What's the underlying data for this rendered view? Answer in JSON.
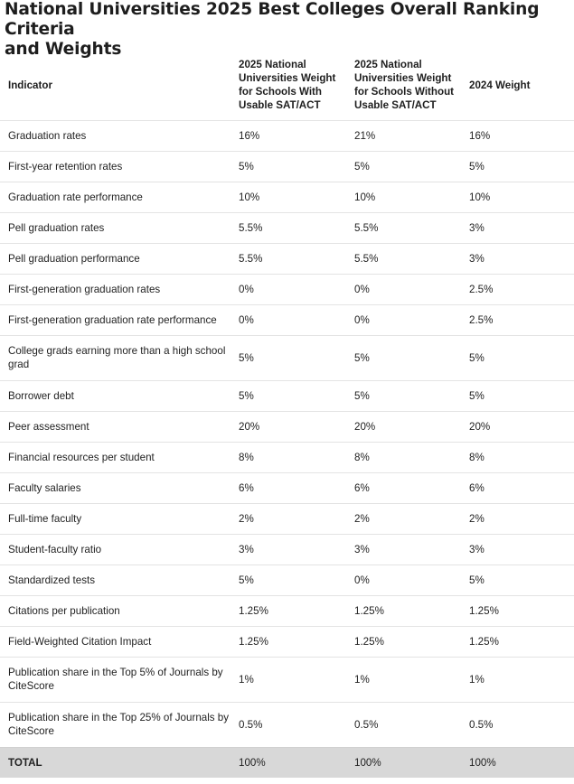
{
  "title_line1": "National Universities 2025 Best Colleges Overall Ranking Criteria",
  "title_line2": "and Weights",
  "headers": {
    "indicator": "Indicator",
    "with_sat": "2025 National Universities Weight for Schools With Usable SAT/ACT",
    "without_sat": "2025 National Universities Weight for Schools Without Usable SAT/ACT",
    "weight_2024": "2024 Weight"
  },
  "rows": [
    {
      "indicator": "Graduation rates",
      "with": "16%",
      "without": "21%",
      "w2024": "16%"
    },
    {
      "indicator": "First-year retention rates",
      "with": "5%",
      "without": "5%",
      "w2024": "5%"
    },
    {
      "indicator": "Graduation rate performance",
      "with": "10%",
      "without": "10%",
      "w2024": "10%"
    },
    {
      "indicator": "Pell graduation rates",
      "with": "5.5%",
      "without": "5.5%",
      "w2024": "3%"
    },
    {
      "indicator": "Pell graduation performance",
      "with": "5.5%",
      "without": "5.5%",
      "w2024": "3%"
    },
    {
      "indicator": "First-generation graduation rates",
      "with": "0%",
      "without": "0%",
      "w2024": "2.5%"
    },
    {
      "indicator": "First-generation graduation rate performance",
      "with": "0%",
      "without": "0%",
      "w2024": "2.5%"
    },
    {
      "indicator": "College grads earning more than a high school grad",
      "with": "5%",
      "without": "5%",
      "w2024": "5%"
    },
    {
      "indicator": "Borrower debt",
      "with": "5%",
      "without": "5%",
      "w2024": "5%"
    },
    {
      "indicator": "Peer assessment",
      "with": "20%",
      "without": "20%",
      "w2024": "20%"
    },
    {
      "indicator": "Financial resources per student",
      "with": "8%",
      "without": "8%",
      "w2024": "8%"
    },
    {
      "indicator": "Faculty salaries",
      "with": "6%",
      "without": "6%",
      "w2024": "6%"
    },
    {
      "indicator": "Full-time faculty",
      "with": "2%",
      "without": "2%",
      "w2024": "2%"
    },
    {
      "indicator": "Student-faculty ratio",
      "with": "3%",
      "without": "3%",
      "w2024": "3%"
    },
    {
      "indicator": "Standardized tests",
      "with": "5%",
      "without": "0%",
      "w2024": "5%"
    },
    {
      "indicator": "Citations per publication",
      "with": "1.25%",
      "without": "1.25%",
      "w2024": "1.25%"
    },
    {
      "indicator": "Field-Weighted Citation Impact",
      "with": "1.25%",
      "without": "1.25%",
      "w2024": "1.25%"
    },
    {
      "indicator": "Publication share in the Top 5% of Journals by CiteScore",
      "with": "1%",
      "without": "1%",
      "w2024": "1%"
    },
    {
      "indicator": "Publication share in the Top 25% of Journals by CiteScore",
      "with": "0.5%",
      "without": "0.5%",
      "w2024": "0.5%"
    }
  ],
  "total": {
    "indicator": "TOTAL",
    "with": "100%",
    "without": "100%",
    "w2024": "100%"
  }
}
